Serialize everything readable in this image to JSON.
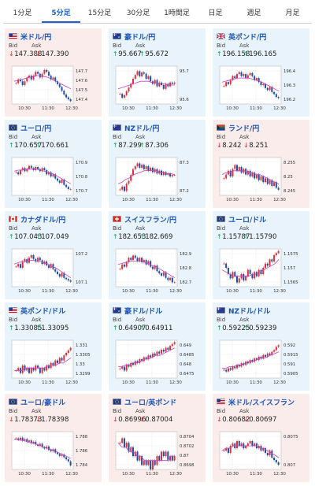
{
  "tabs": [
    {
      "label": "1分足",
      "active": false
    },
    {
      "label": "5分足",
      "active": true
    },
    {
      "label": "15分足",
      "active": false
    },
    {
      "label": "30分足",
      "active": false
    },
    {
      "label": "1時間足",
      "active": false
    },
    {
      "label": "日足",
      "active": false
    },
    {
      "label": "週足",
      "active": false
    },
    {
      "label": "月足",
      "active": false
    }
  ],
  "labels": {
    "bid": "Bid",
    "ask": "Ask"
  },
  "colors": {
    "up_arrow": "#1a9e58",
    "down_arrow": "#d9323a",
    "up_candle": "#d9323a",
    "down_candle": "#1e4f9e",
    "ma_line": "#c63fc6",
    "grid": "#cfcfcf"
  },
  "cards": [
    {
      "pair": "米ドル/円",
      "flag": "us",
      "trend": "down",
      "bid": "147.388",
      "ask": "147.390",
      "chart_data": {
        "type": "candlestick",
        "x_ticks": [
          "10:30",
          "11:30",
          "12:30"
        ],
        "y_ticks": [
          "147.7",
          "147.6",
          "147.5",
          "147.4"
        ],
        "ylim": [
          147.36,
          147.76
        ],
        "closes": [
          147.58,
          147.62,
          147.6,
          147.56,
          147.6,
          147.64,
          147.66,
          147.62,
          147.66,
          147.7,
          147.68,
          147.64,
          147.68,
          147.72,
          147.7,
          147.66,
          147.62,
          147.64,
          147.6,
          147.57,
          147.54,
          147.5,
          147.46,
          147.43,
          147.41,
          147.39
        ],
        "ma": [
          147.6,
          147.61,
          147.62,
          147.63,
          147.64,
          147.65,
          147.66,
          147.66,
          147.65,
          147.64,
          147.62,
          147.6,
          147.58,
          147.56,
          147.54,
          147.52
        ]
      }
    },
    {
      "pair": "豪ドル/円",
      "flag": "au",
      "trend": "up",
      "bid": "95.667",
      "ask": "95.672",
      "chart_data": {
        "type": "candlestick",
        "x_ticks": [
          "10:30",
          "11:30",
          "12:30"
        ],
        "y_ticks": [
          "95.7",
          "95.6"
        ],
        "ylim": [
          95.5,
          95.8
        ],
        "closes": [
          95.58,
          95.55,
          95.57,
          95.6,
          95.63,
          95.66,
          95.7,
          95.73,
          95.76,
          95.72,
          95.75,
          95.74,
          95.7,
          95.72,
          95.68,
          95.66,
          95.69,
          95.64,
          95.67,
          95.65,
          95.62,
          95.66,
          95.64,
          95.67,
          95.66,
          95.67
        ],
        "ma": [
          95.62,
          95.63,
          95.64,
          95.65,
          95.66,
          95.67,
          95.68,
          95.68,
          95.68,
          95.67,
          95.67,
          95.66,
          95.66,
          95.65,
          95.65,
          95.65
        ]
      }
    },
    {
      "pair": "英ポンド/円",
      "flag": "gb",
      "trend": "up",
      "bid": "196.158",
      "ask": "196.165",
      "chart_data": {
        "type": "candlestick",
        "x_ticks": [
          "10:30",
          "11:30",
          "12:30"
        ],
        "y_ticks": [
          "196.4",
          "196.3",
          "196.2"
        ],
        "ylim": [
          196.1,
          196.48
        ],
        "closes": [
          196.28,
          196.32,
          196.3,
          196.34,
          196.38,
          196.36,
          196.4,
          196.42,
          196.38,
          196.4,
          196.36,
          196.39,
          196.41,
          196.38,
          196.34,
          196.36,
          196.32,
          196.29,
          196.3,
          196.26,
          196.24,
          196.27,
          196.22,
          196.2,
          196.17,
          196.16
        ],
        "ma": [
          196.32,
          196.33,
          196.34,
          196.35,
          196.36,
          196.36,
          196.36,
          196.36,
          196.35,
          196.34,
          196.33,
          196.31,
          196.29,
          196.27,
          196.25,
          196.23
        ]
      }
    },
    {
      "pair": "ユーロ/円",
      "flag": "eu",
      "trend": "up",
      "bid": "170.657",
      "ask": "170.661",
      "chart_data": {
        "type": "candlestick",
        "x_ticks": [
          "10:30",
          "11:30",
          "12:30"
        ],
        "y_ticks": [
          "170.9",
          "170.8",
          "170.7"
        ],
        "ylim": [
          170.6,
          170.96
        ],
        "closes": [
          170.82,
          170.8,
          170.84,
          170.86,
          170.83,
          170.85,
          170.88,
          170.86,
          170.84,
          170.87,
          170.85,
          170.83,
          170.86,
          170.84,
          170.8,
          170.82,
          170.78,
          170.8,
          170.76,
          170.74,
          170.72,
          170.75,
          170.7,
          170.68,
          170.66,
          170.66
        ],
        "ma": [
          170.83,
          170.84,
          170.84,
          170.85,
          170.85,
          170.85,
          170.85,
          170.84,
          170.83,
          170.82,
          170.81,
          170.79,
          170.77,
          170.75,
          170.73,
          170.71
        ]
      }
    },
    {
      "pair": "NZドル/円",
      "flag": "nz",
      "trend": "up",
      "bid": "87.299",
      "ask": "87.306",
      "chart_data": {
        "type": "candlestick",
        "x_ticks": [
          "10:30",
          "11:30",
          "12:30"
        ],
        "y_ticks": [
          "87.3",
          "87.2"
        ],
        "ylim": [
          87.16,
          87.42
        ],
        "closes": [
          87.2,
          87.22,
          87.19,
          87.24,
          87.26,
          87.3,
          87.34,
          87.36,
          87.38,
          87.35,
          87.37,
          87.34,
          87.36,
          87.33,
          87.35,
          87.32,
          87.34,
          87.31,
          87.33,
          87.3,
          87.32,
          87.3,
          87.31,
          87.29,
          87.3,
          87.3
        ],
        "ma": [
          87.24,
          87.25,
          87.27,
          87.28,
          87.3,
          87.31,
          87.32,
          87.33,
          87.33,
          87.33,
          87.33,
          87.32,
          87.32,
          87.31,
          87.31,
          87.3
        ]
      }
    },
    {
      "pair": "ランド/円",
      "flag": "za",
      "trend": "down",
      "bid": "8.242",
      "ask": "8.251",
      "chart_data": {
        "type": "candlestick",
        "x_ticks": [
          "10:30",
          "11:30",
          "12:30"
        ],
        "y_ticks": [
          "8.255",
          "8.25",
          "8.245"
        ],
        "ylim": [
          8.239,
          8.259
        ],
        "closes": [
          8.248,
          8.25,
          8.252,
          8.249,
          8.253,
          8.255,
          8.252,
          8.254,
          8.251,
          8.253,
          8.25,
          8.252,
          8.249,
          8.251,
          8.248,
          8.25,
          8.247,
          8.249,
          8.246,
          8.248,
          8.245,
          8.247,
          8.244,
          8.246,
          8.243,
          8.242
        ],
        "ma": [
          8.25,
          8.251,
          8.251,
          8.252,
          8.252,
          8.252,
          8.252,
          8.251,
          8.251,
          8.25,
          8.25,
          8.249,
          8.248,
          8.247,
          8.246,
          8.245
        ]
      }
    },
    {
      "pair": "カナダドル/円",
      "flag": "ca",
      "trend": "up",
      "bid": "107.043",
      "ask": "107.049",
      "chart_data": {
        "type": "candlestick",
        "x_ticks": [
          "10:30",
          "11:30",
          "12:30"
        ],
        "y_ticks": [
          "107.2",
          "107.1"
        ],
        "ylim": [
          107.0,
          107.3
        ],
        "closes": [
          107.16,
          107.18,
          107.15,
          107.2,
          107.22,
          107.19,
          107.23,
          107.25,
          107.22,
          107.2,
          107.23,
          107.21,
          107.18,
          107.2,
          107.17,
          107.15,
          107.18,
          107.14,
          107.12,
          107.1,
          107.08,
          107.11,
          107.07,
          107.06,
          107.05,
          107.04
        ],
        "ma": [
          107.18,
          107.19,
          107.2,
          107.2,
          107.21,
          107.21,
          107.2,
          107.2,
          107.19,
          107.18,
          107.16,
          107.15,
          107.13,
          107.11,
          107.09,
          107.07
        ]
      }
    },
    {
      "pair": "スイスフラン/円",
      "flag": "ch",
      "trend": "up",
      "bid": "182.653",
      "ask": "182.669",
      "chart_data": {
        "type": "candlestick",
        "x_ticks": [
          "10:30",
          "11:30",
          "12:30"
        ],
        "y_ticks": [
          "182.9",
          "182.8",
          "182.7"
        ],
        "ylim": [
          182.62,
          182.96
        ],
        "closes": [
          182.78,
          182.82,
          182.8,
          182.84,
          182.88,
          182.86,
          182.9,
          182.88,
          182.85,
          182.88,
          182.84,
          182.86,
          182.82,
          182.85,
          182.8,
          182.78,
          182.81,
          182.76,
          182.74,
          182.72,
          182.75,
          182.7,
          182.68,
          182.7,
          182.66,
          182.66
        ],
        "ma": [
          182.82,
          182.83,
          182.84,
          182.85,
          182.85,
          182.85,
          182.85,
          182.84,
          182.83,
          182.81,
          182.8,
          182.78,
          182.76,
          182.74,
          182.72,
          182.7
        ]
      }
    },
    {
      "pair": "ユーロ/ドル",
      "flag": "eu",
      "trend": "up",
      "bid": "1.15787",
      "ask": "1.15790",
      "chart_data": {
        "type": "candlestick",
        "x_ticks": [
          "10:30",
          "11:30",
          "12:30"
        ],
        "y_ticks": [
          "1.1575",
          "1.157",
          "1.1565"
        ],
        "ylim": [
          1.1562,
          1.158
        ],
        "closes": [
          1.1573,
          1.1571,
          1.1568,
          1.1566,
          1.1569,
          1.1567,
          1.1564,
          1.1566,
          1.1568,
          1.1565,
          1.1567,
          1.157,
          1.1568,
          1.1566,
          1.1569,
          1.1567,
          1.157,
          1.1568,
          1.1571,
          1.1573,
          1.1572,
          1.1575,
          1.1574,
          1.1577,
          1.1578,
          1.1579
        ],
        "ma": [
          1.157,
          1.1569,
          1.1568,
          1.1567,
          1.1567,
          1.1567,
          1.1567,
          1.1567,
          1.1568,
          1.1568,
          1.1569,
          1.157,
          1.1571,
          1.1572,
          1.1573,
          1.1575
        ]
      }
    },
    {
      "pair": "英ポンド/ドル",
      "flag": "us",
      "trend": "up",
      "bid": "1.33085",
      "ask": "1.33095",
      "chart_data": {
        "type": "candlestick",
        "x_ticks": [
          "10:30",
          "11:30",
          "12:30"
        ],
        "y_ticks": [
          "1.331",
          "1.3305",
          "1.33",
          "1.3299"
        ],
        "ylim": [
          1.3297,
          1.3312
        ],
        "closes": [
          1.33,
          1.3301,
          1.3299,
          1.3302,
          1.33,
          1.3301,
          1.3299,
          1.3301,
          1.33,
          1.3302,
          1.3301,
          1.3299,
          1.3301,
          1.33,
          1.3302,
          1.3301,
          1.3303,
          1.3302,
          1.3304,
          1.3303,
          1.3305,
          1.3304,
          1.3306,
          1.3307,
          1.3308,
          1.3309
        ],
        "ma": [
          1.33,
          1.33,
          1.33,
          1.3301,
          1.3301,
          1.3301,
          1.3301,
          1.3301,
          1.3301,
          1.3302,
          1.3302,
          1.3302,
          1.3303,
          1.3303,
          1.3304,
          1.3305
        ]
      }
    },
    {
      "pair": "豪ドル/ドル",
      "flag": "au",
      "trend": "up",
      "bid": "0.64907",
      "ask": "0.64911",
      "chart_data": {
        "type": "candlestick",
        "x_ticks": [
          "10:30",
          "11:30",
          "12:30"
        ],
        "y_ticks": [
          "0.649",
          "0.6485",
          "0.648",
          "0.6475"
        ],
        "ylim": [
          0.6472,
          0.6492
        ],
        "closes": [
          0.6477,
          0.6478,
          0.6476,
          0.6479,
          0.6478,
          0.648,
          0.6479,
          0.6481,
          0.648,
          0.6482,
          0.6481,
          0.6483,
          0.6482,
          0.6484,
          0.6483,
          0.6485,
          0.6484,
          0.6486,
          0.6485,
          0.6487,
          0.6486,
          0.6488,
          0.6487,
          0.6489,
          0.649,
          0.6491
        ],
        "ma": [
          0.6478,
          0.6478,
          0.6479,
          0.6479,
          0.648,
          0.648,
          0.6481,
          0.6482,
          0.6482,
          0.6483,
          0.6484,
          0.6484,
          0.6485,
          0.6486,
          0.6487,
          0.6488
        ]
      }
    },
    {
      "pair": "NZドル/ドル",
      "flag": "nz",
      "trend": "up",
      "bid": "0.59225",
      "ask": "0.59239",
      "chart_data": {
        "type": "candlestick",
        "x_ticks": [
          "10:30",
          "11:30",
          "12:30"
        ],
        "y_ticks": [
          "0.592",
          "0.5915",
          "0.591",
          "0.5905"
        ],
        "ylim": [
          0.5902,
          0.5925
        ],
        "closes": [
          0.5907,
          0.5906,
          0.5908,
          0.5907,
          0.5909,
          0.5908,
          0.591,
          0.5909,
          0.5911,
          0.591,
          0.5912,
          0.5911,
          0.5913,
          0.5912,
          0.5914,
          0.5913,
          0.5915,
          0.5914,
          0.5916,
          0.5915,
          0.5917,
          0.5916,
          0.5918,
          0.5919,
          0.5921,
          0.5922
        ],
        "ma": [
          0.5908,
          0.5908,
          0.5909,
          0.5909,
          0.591,
          0.591,
          0.5911,
          0.5912,
          0.5912,
          0.5913,
          0.5914,
          0.5914,
          0.5915,
          0.5916,
          0.5917,
          0.5918
        ]
      }
    },
    {
      "pair": "ユーロ/豪ドル",
      "flag": "eu",
      "trend": "down",
      "bid": "1.78373",
      "ask": "1.78398",
      "chart_data": {
        "type": "candlestick",
        "x_ticks": [
          "10:30",
          "11:30",
          "12:30"
        ],
        "y_ticks": [
          "1.788",
          "1.786",
          "1.784"
        ],
        "ylim": [
          1.7832,
          1.7888
        ],
        "closes": [
          1.7878,
          1.7876,
          1.7879,
          1.7875,
          1.7877,
          1.7873,
          1.7875,
          1.7871,
          1.7873,
          1.7869,
          1.7867,
          1.787,
          1.7865,
          1.7863,
          1.7866,
          1.7861,
          1.7859,
          1.7862,
          1.7857,
          1.7855,
          1.7852,
          1.7854,
          1.785,
          1.7847,
          1.7844,
          1.7838
        ],
        "ma": [
          1.7877,
          1.7876,
          1.7875,
          1.7874,
          1.7872,
          1.7871,
          1.7869,
          1.7867,
          1.7865,
          1.7863,
          1.7861,
          1.7859,
          1.7856,
          1.7854,
          1.7851,
          1.7848
        ]
      }
    },
    {
      "pair": "ユーロ/英ポンド",
      "flag": "eu",
      "trend": "down",
      "bid": "0.86996",
      "ask": "0.87004",
      "chart_data": {
        "type": "candlestick",
        "x_ticks": [
          "10:30",
          "11:30",
          "12:30"
        ],
        "y_ticks": [
          "0.8704",
          "0.8702",
          "0.87",
          "0.8698"
        ],
        "ylim": [
          0.8697,
          0.87055
        ],
        "closes": [
          0.8703,
          0.8704,
          0.8702,
          0.8703,
          0.8701,
          0.8702,
          0.87,
          0.8701,
          0.8699,
          0.87,
          0.8698,
          0.8699,
          0.8698,
          0.8699,
          0.8697,
          0.8699,
          0.8698,
          0.87,
          0.8699,
          0.8701,
          0.87,
          0.8701,
          0.8699,
          0.87,
          0.8699,
          0.87
        ],
        "ma": [
          0.8703,
          0.8702,
          0.8702,
          0.8701,
          0.8701,
          0.87,
          0.87,
          0.8699,
          0.8699,
          0.8699,
          0.8699,
          0.8699,
          0.8699,
          0.8699,
          0.87,
          0.87
        ]
      }
    },
    {
      "pair": "米ドル/スイスフラン",
      "flag": "us",
      "trend": "down",
      "bid": "0.80682",
      "ask": "0.80697",
      "chart_data": {
        "type": "candlestick",
        "x_ticks": [
          "10:30",
          "11:30",
          "12:30"
        ],
        "y_ticks": [
          "0.8075",
          "0.807"
        ],
        "ylim": [
          0.8066,
          0.8082
        ],
        "closes": [
          0.8074,
          0.8075,
          0.8073,
          0.8076,
          0.8077,
          0.8075,
          0.8078,
          0.8076,
          0.8077,
          0.8075,
          0.8076,
          0.8077,
          0.8078,
          0.8076,
          0.8077,
          0.8075,
          0.8076,
          0.8074,
          0.8075,
          0.8073,
          0.8072,
          0.8074,
          0.8071,
          0.807,
          0.8069,
          0.8068
        ],
        "ma": [
          0.8074,
          0.8075,
          0.8075,
          0.8076,
          0.8076,
          0.8076,
          0.8076,
          0.8076,
          0.8076,
          0.8076,
          0.8075,
          0.8075,
          0.8074,
          0.8073,
          0.8072,
          0.8071
        ]
      }
    }
  ]
}
